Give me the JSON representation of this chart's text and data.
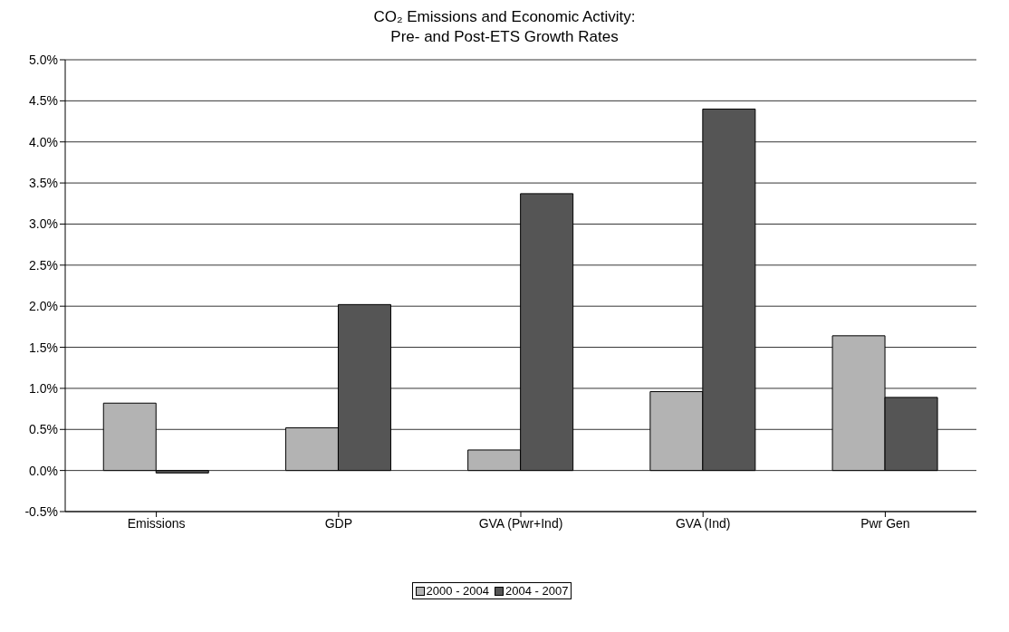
{
  "chart_data": {
    "type": "bar",
    "title": "CO₂ Emissions and Economic Activity:\nPre- and Post-ETS Growth Rates",
    "categories": [
      "Emissions",
      "GDP",
      "GVA (Pwr+Ind)",
      "GVA (Ind)",
      "Pwr Gen"
    ],
    "series": [
      {
        "name": "2000 - 2004",
        "color": "#b3b3b3",
        "values": [
          0.82,
          0.52,
          0.25,
          0.96,
          1.64
        ]
      },
      {
        "name": "2004 - 2007",
        "color": "#555555",
        "values": [
          -0.03,
          2.02,
          3.37,
          4.4,
          0.89
        ]
      }
    ],
    "ylim": [
      -0.5,
      5
    ],
    "yticks": [
      {
        "value": -0.5,
        "label": "-0.5%"
      },
      {
        "value": 0,
        "label": "0.0%"
      },
      {
        "value": 0.5,
        "label": "0.5%"
      },
      {
        "value": 1,
        "label": "1.0%"
      },
      {
        "value": 1.5,
        "label": "1.5%"
      },
      {
        "value": 2,
        "label": "2.0%"
      },
      {
        "value": 2.5,
        "label": "2.5%"
      },
      {
        "value": 3,
        "label": "3.0%"
      },
      {
        "value": 3.5,
        "label": "3.5%"
      },
      {
        "value": 4,
        "label": "4.0%"
      },
      {
        "value": 4.5,
        "label": "4.5%"
      },
      {
        "value": 5,
        "label": "5.0%"
      }
    ],
    "grid": "y",
    "legend": "bottom"
  }
}
